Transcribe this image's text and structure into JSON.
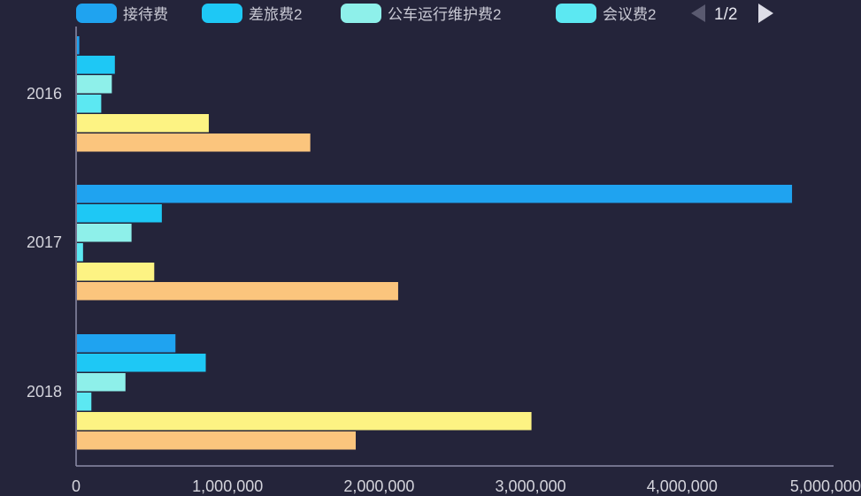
{
  "colors": {
    "background": "#24243a",
    "axis": "#8c8ca8",
    "text": "#d4d4dc",
    "pager_active": "#dcdce6",
    "pager_inactive": "#5a5a70"
  },
  "legend": {
    "items": [
      {
        "label": "接待费",
        "color": "#1fa3f0"
      },
      {
        "label": "差旅费2",
        "color": "#1ec8f5"
      },
      {
        "label": "公车运行维护费2",
        "color": "#8ef0ea"
      },
      {
        "label": "会议费2",
        "color": "#5ce8f2"
      }
    ],
    "pager": {
      "text": "1/2",
      "prev_icon": "triangle-left-icon",
      "next_icon": "triangle-right-icon"
    }
  },
  "chart_data": {
    "type": "bar",
    "orientation": "horizontal",
    "categories": [
      "2016",
      "2017",
      "2018"
    ],
    "series": [
      {
        "name": "接待费",
        "color": "#1fa3f0",
        "values": [
          15000,
          4720000,
          650000
        ]
      },
      {
        "name": "差旅费2",
        "color": "#1ec8f5",
        "values": [
          250000,
          560000,
          850000
        ]
      },
      {
        "name": "公车运行维护费2",
        "color": "#8ef0ea",
        "values": [
          230000,
          360000,
          320000
        ]
      },
      {
        "name": "会议费2",
        "color": "#5ce8f2",
        "values": [
          160000,
          40000,
          95000
        ]
      },
      {
        "color": "#fdf383",
        "values": [
          870000,
          510000,
          3000000
        ]
      },
      {
        "color": "#fbc57d",
        "values": [
          1540000,
          2120000,
          1840000
        ]
      }
    ],
    "x_ticks": [
      "0",
      "1,000,000",
      "2,000,000",
      "3,000,000",
      "4,000,000",
      "5,000,000"
    ],
    "xlim": [
      0,
      5000000
    ],
    "grid": false,
    "legend_position": "top"
  }
}
